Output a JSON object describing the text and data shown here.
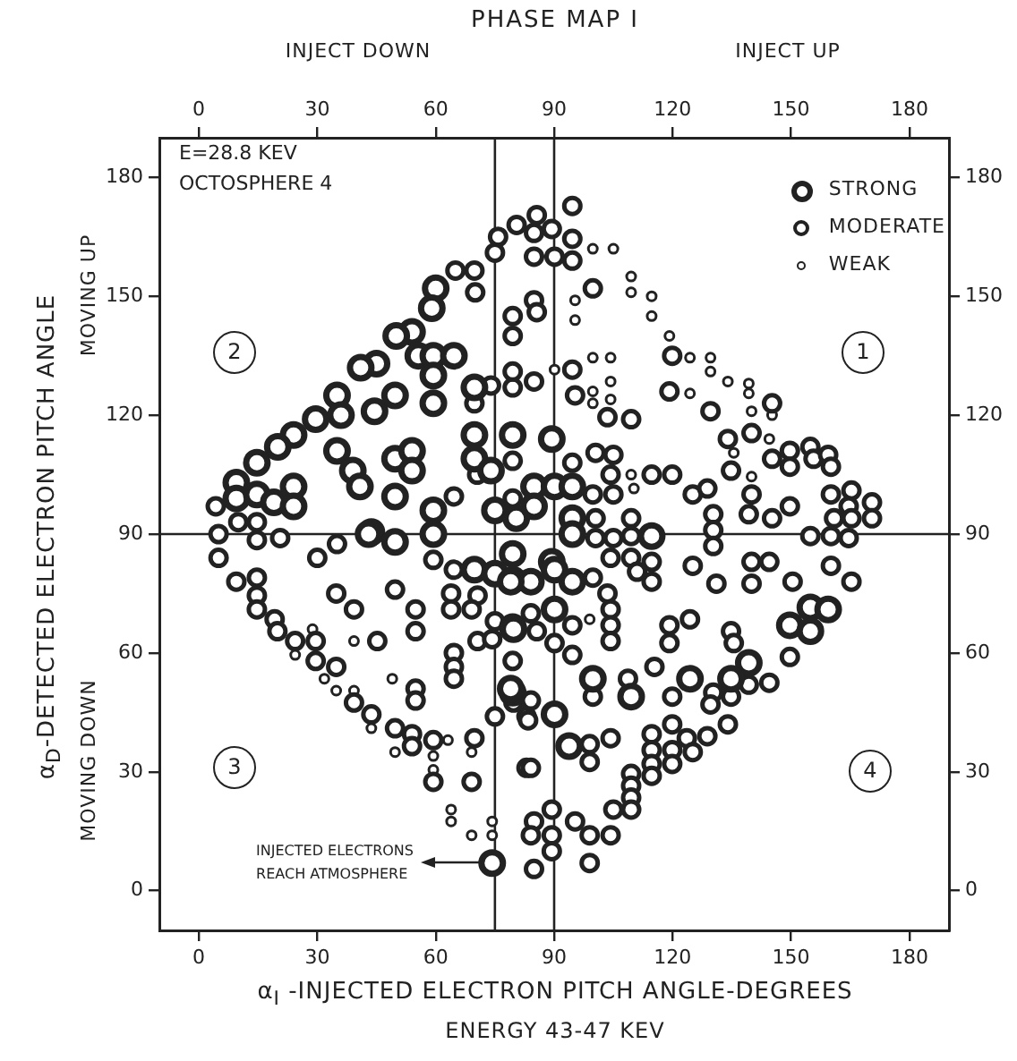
{
  "chart_data": {
    "type": "scatter",
    "title": "PHASE MAP I",
    "xlabel": "α$_{I}$ -INJECTED ELECTRON PITCH ANGLE-DEGREES",
    "ylabel": "α$_{D}$-DETECTED ELECTRON PITCH ANGLE",
    "xlim": [
      -10,
      190
    ],
    "xticks": [
      0,
      30,
      60,
      90,
      120,
      150,
      180
    ],
    "x2lim": [
      -10,
      190
    ],
    "x2ticks": [
      0,
      30,
      60,
      90,
      120,
      150,
      180
    ],
    "ylim": [
      -10,
      190
    ],
    "yticks": [
      0,
      30,
      60,
      90,
      120,
      150,
      180
    ],
    "y2lim": [
      -10,
      190
    ],
    "y2ticks": [
      0,
      30,
      60,
      90,
      120,
      150,
      180
    ],
    "grid": false,
    "legend": "top right",
    "marker": "circle",
    "ref_lines": [
      {
        "axis": "x",
        "value": 75,
        "color": "#222222"
      },
      {
        "axis": "x",
        "value": 90,
        "color": "#222222"
      },
      {
        "axis": "y",
        "value": 90,
        "color": "#222222"
      }
    ],
    "annotations": [
      "E=28.8 KEV",
      "OCTOSPHERE 4",
      "1",
      "2",
      "3",
      "4",
      "INJECT DOWN",
      "INJECT UP",
      "MOVING UP",
      "MOVING DOWN",
      "ENERGY 43-47 KEV",
      "INJECTED ELECTRONS\nREACH ATMOSPHERE"
    ],
    "series": [
      {
        "name": "STRONG",
        "color": "#222222",
        "x": [
          60,
          59,
          54,
          50,
          45,
          41,
          35,
          36,
          29.6,
          24,
          20,
          14.7,
          9.5,
          9.5,
          14.7,
          19,
          24,
          24,
          55.6,
          59.4,
          64.6,
          59.4,
          59.4,
          44.5,
          49.7,
          35,
          39,
          40.8,
          49.7,
          54,
          54,
          49.7,
          43.7,
          49.7,
          59.4,
          59.4,
          69.8,
          69.8,
          69.8,
          79.5,
          74,
          75,
          79.5,
          114.7,
          89.4,
          84.9,
          90.1,
          94.6,
          94.6,
          80.4,
          84.9,
          94.6,
          89.4,
          74.3,
          69.8,
          75,
          79.5,
          79.5,
          79.5,
          43,
          90.1,
          94.6,
          84.1,
          79,
          90.1,
          79.7,
          149.7,
          154.9,
          159.4,
          154.9,
          139.3,
          134.8,
          124.4,
          99.8,
          109.5,
          90.1,
          79,
          93.8
        ],
        "values": [
          152,
          147,
          141,
          140,
          133,
          132,
          125,
          120,
          119,
          115,
          112,
          108,
          103,
          99,
          100,
          98,
          102,
          97,
          135,
          135,
          135,
          130,
          123,
          121,
          125,
          111,
          106,
          102,
          109,
          111,
          106,
          99.5,
          90.5,
          88,
          96,
          90,
          127,
          115,
          109,
          115,
          106,
          96,
          85,
          89.5,
          114,
          102,
          102,
          102,
          94,
          94,
          97,
          90,
          83,
          7,
          81,
          80,
          78.5,
          66.5,
          50,
          90,
          81,
          78,
          78,
          78,
          71,
          66,
          67,
          71.5,
          71,
          65.5,
          57.5,
          53.5,
          53.5,
          53.5,
          49,
          44.5,
          51,
          36.5
        ]
      },
      {
        "name": "MODERATE",
        "color": "#222222",
        "x": [
          75.8,
          75,
          80.5,
          69.8,
          65,
          70,
          4.3,
          10,
          14.7,
          5,
          14.7,
          20.6,
          5,
          30,
          64.6,
          35,
          74,
          69.8,
          79.5,
          79.5,
          79.5,
          79.5,
          79.5,
          70.5,
          79.5,
          94.6,
          85.6,
          84.9,
          89.4,
          94.6,
          84.9,
          90.1,
          94.6,
          99.8,
          84.9,
          85.6,
          119.9,
          94.6,
          84.9,
          95.3,
          119.2,
          145.2,
          129.6,
          140,
          103.5,
          109.5,
          134,
          145.2,
          149.7,
          154.9,
          155.7,
          159.4,
          160.1,
          149.7,
          134.8,
          100.5,
          105,
          94.6,
          104.3,
          114.7,
          119.9,
          125.1,
          128.8,
          99.8,
          105,
          100.5,
          109.5,
          130.3,
          130.3,
          130.3,
          140,
          139.3,
          145.2,
          149.7,
          160.1,
          165.3,
          160.9,
          164.6,
          170.5,
          165.3,
          170.5,
          164.6,
          160.1,
          154.9,
          109.5,
          105,
          100.5,
          9.5,
          14.7,
          14.7,
          14.7,
          19.2,
          19.9,
          24.4,
          29.6,
          29.6,
          34.8,
          39.3,
          43.7,
          49.7,
          54,
          54,
          59.4,
          69.8,
          59.4,
          69.1,
          34.8,
          39.3,
          45.2,
          49.7,
          54.9,
          54.9,
          54.9,
          54.9,
          63.9,
          63.9,
          70.6,
          69.1,
          70.6,
          64.6,
          64.6,
          64.6,
          59.4,
          64.6,
          75,
          74.3,
          79.5,
          75,
          83,
          83,
          99.8,
          104.3,
          109.5,
          111,
          114.7,
          114.7,
          125.1,
          131.1,
          140,
          144.5,
          140,
          150.4,
          160.1,
          165.3,
          103.5,
          104.3,
          104.3,
          104.3,
          94.6,
          84.1,
          85.6,
          90.1,
          94.6,
          119.2,
          119.2,
          124.4,
          134.8,
          135.5,
          149.7,
          139.3,
          144.5,
          134.8,
          130.3,
          129.6,
          134,
          128.8,
          119.9,
          119.9,
          123.6,
          125.1,
          119.9,
          119.9,
          114.7,
          114.7,
          114.7,
          114.7,
          109.5,
          109.5,
          109.5,
          109.5,
          105,
          104.3,
          99.8,
          108.7,
          79.7,
          84.1,
          83.4,
          99,
          99,
          84.1,
          89.4,
          84.9,
          84.1,
          89.4,
          89.4,
          95.3,
          99,
          104.3,
          99,
          84.9,
          115.4
        ],
        "values": [
          165,
          161,
          168,
          156.5,
          156.5,
          151,
          97,
          93,
          93,
          90,
          88.5,
          89,
          84,
          84,
          99.5,
          87.5,
          127.5,
          123,
          127,
          140,
          145,
          131,
          108.5,
          105,
          99,
          172.8,
          170.5,
          166,
          167,
          164.5,
          160,
          160,
          159,
          152,
          149,
          146,
          135,
          131.5,
          128.5,
          125,
          126,
          123,
          121,
          115.5,
          119.5,
          119,
          114,
          109,
          111,
          112,
          109,
          110,
          107,
          107,
          106,
          110.5,
          110,
          108,
          105,
          105,
          105,
          100,
          101.5,
          100,
          100,
          94,
          94,
          95,
          91,
          87,
          100,
          95,
          94,
          97,
          100,
          101,
          94,
          97,
          98,
          94,
          94,
          89,
          89.5,
          89.5,
          89.5,
          89,
          89,
          78,
          79,
          74.5,
          71,
          68.5,
          65.5,
          63,
          63,
          58,
          56.5,
          47.5,
          44.5,
          41,
          39.5,
          36.5,
          38,
          38.5,
          27.5,
          27.5,
          75,
          71,
          63,
          76,
          71,
          65.5,
          51,
          48,
          75,
          71,
          74.5,
          71,
          63,
          60,
          56.5,
          53.5,
          83.5,
          81,
          68,
          63.5,
          58,
          44,
          44,
          31,
          79,
          84,
          84,
          80.5,
          78,
          83,
          82,
          77.5,
          83,
          83,
          77.5,
          78,
          82,
          78,
          75,
          71,
          67,
          63,
          67,
          70,
          65.5,
          62.5,
          59.5,
          67,
          62.5,
          68.5,
          65.5,
          62.5,
          59,
          52,
          52.5,
          49,
          50,
          47,
          42,
          39,
          49,
          42,
          38.5,
          35,
          35.5,
          32,
          39.5,
          35.5,
          32,
          29,
          29.5,
          26.5,
          23.5,
          20.5,
          20.5,
          38.5,
          49,
          53.5,
          47.5,
          48,
          43,
          37,
          32.5,
          31,
          20.5,
          17.5,
          14,
          14,
          10,
          17.5,
          14,
          14,
          7,
          5.5,
          56.5
        ]
      },
      {
        "name": "WEAK",
        "color": "#222222",
        "x": [
          99.8,
          105,
          109.5,
          109.5,
          114.7,
          95.3,
          95.3,
          114.7,
          119.2,
          124.4,
          129.6,
          129.6,
          99.8,
          104.3,
          90.1,
          99.8,
          104.3,
          99.8,
          104.3,
          124.4,
          134,
          139.3,
          139.3,
          145.2,
          140,
          135.5,
          144.5,
          140,
          109.5,
          110.2,
          24.4,
          28.8,
          31.8,
          34.8,
          39.3,
          43.7,
          49.7,
          59.4,
          59.4,
          63.1,
          69.1,
          63.9,
          63.9,
          69.1,
          74.3,
          74.3,
          39.3,
          49,
          99
        ],
        "values": [
          162,
          162,
          155,
          151,
          150,
          149,
          144,
          145,
          140,
          134.5,
          134.5,
          131,
          134.5,
          134.5,
          131.5,
          126,
          128.5,
          123,
          124,
          125.5,
          128.5,
          128,
          125.5,
          120,
          121,
          110.5,
          114,
          104.5,
          105,
          101.5,
          59.5,
          66,
          53.5,
          50.5,
          50.5,
          41,
          35,
          34,
          30.5,
          38,
          35,
          20.5,
          17.5,
          14,
          17.5,
          14,
          63,
          53.5,
          68.5
        ]
      }
    ]
  }
}
